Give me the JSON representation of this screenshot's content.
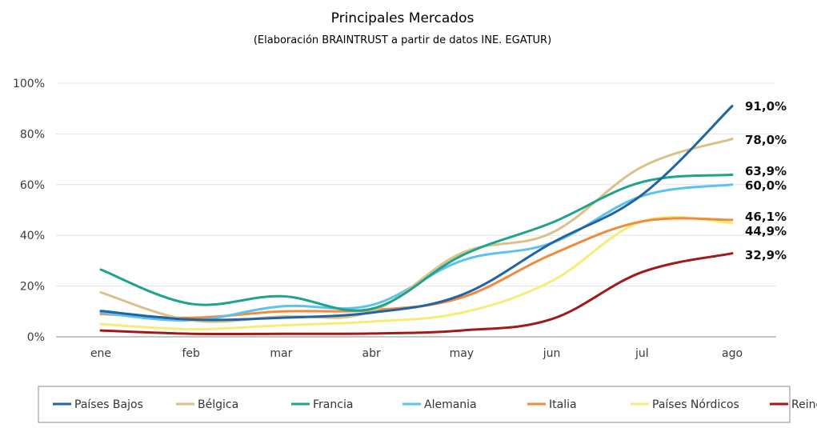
{
  "chart_data": {
    "type": "line",
    "title": "Principales Mercados",
    "subtitle": "(Elaboración BRAINTRUST a partir de datos INE. EGATUR)",
    "xlabel": "",
    "ylabel": "",
    "categories": [
      "ene",
      "feb",
      "mar",
      "abr",
      "may",
      "jun",
      "jul",
      "ago"
    ],
    "ylim": [
      0,
      100
    ],
    "yticks": [
      0,
      20,
      40,
      60,
      80,
      100
    ],
    "ytick_labels": [
      "0%",
      "20%",
      "40%",
      "60%",
      "80%",
      "100%"
    ],
    "grid": true,
    "legend_position": "bottom",
    "series": [
      {
        "name": "Países Bajos",
        "color": "#2264a3",
        "values": [
          10.2,
          6.8,
          7.5,
          9.5,
          16.5,
          37.0,
          56.0,
          91.0
        ],
        "end_label": "91,0%"
      },
      {
        "name": "Bélgica",
        "color": "#d9c188",
        "values": [
          17.5,
          6.5,
          8.0,
          10.0,
          33.0,
          41.0,
          67.0,
          78.0
        ],
        "end_label": "78,0%"
      },
      {
        "name": "Francia",
        "color": "#1ea38c",
        "values": [
          26.5,
          13.0,
          16.0,
          11.0,
          32.0,
          45.0,
          61.0,
          63.9
        ],
        "end_label": "63,9%"
      },
      {
        "name": "Alemania",
        "color": "#5ec2ee",
        "values": [
          9.5,
          6.5,
          12.0,
          12.5,
          30.0,
          37.0,
          55.5,
          60.0
        ],
        "end_label": "60,0%"
      },
      {
        "name": "Italia",
        "color": "#f08a3c",
        "values": [
          9.0,
          7.5,
          10.0,
          10.5,
          15.5,
          32.5,
          45.5,
          46.1
        ],
        "end_label": "46,1%"
      },
      {
        "name": "Países Nórdicos",
        "color": "#f7ec79",
        "values": [
          5.0,
          3.0,
          4.5,
          6.0,
          9.5,
          22.0,
          45.5,
          44.9
        ],
        "end_label": "44,9%"
      },
      {
        "name": "Reino Unido",
        "color": "#a01a1a",
        "values": [
          2.5,
          1.2,
          1.2,
          1.3,
          2.5,
          7.0,
          25.5,
          32.9
        ],
        "end_label": "32,9%"
      }
    ]
  }
}
